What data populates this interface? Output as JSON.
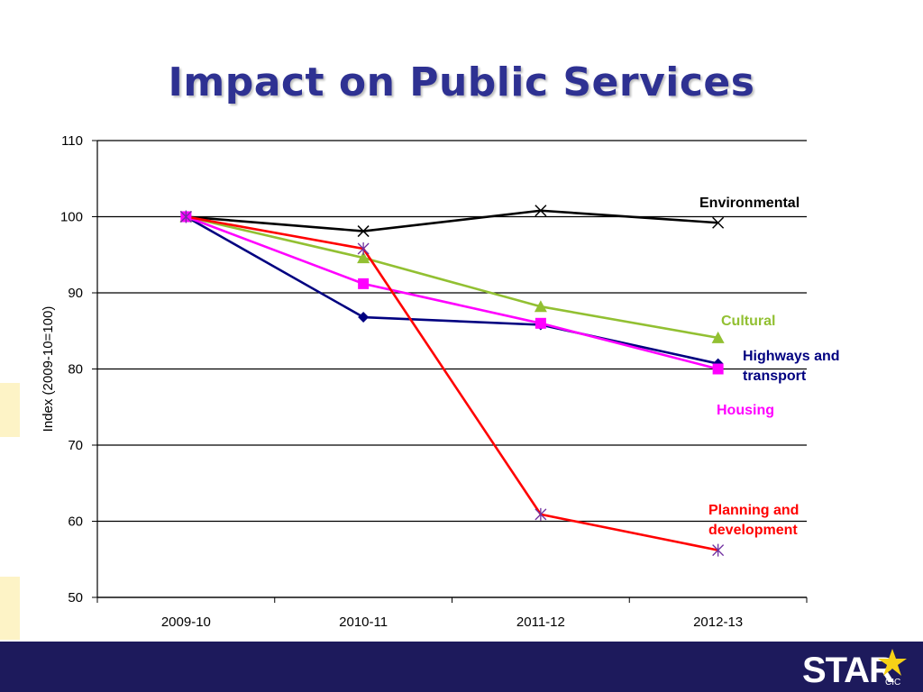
{
  "slide": {
    "title": "Impact on Public Services",
    "logo_text": "STAR",
    "logo_subtext": "CIC"
  },
  "chart_data": {
    "type": "line",
    "title": "",
    "xlabel": "",
    "ylabel": "Index (2009-10=100)",
    "ylim": [
      50,
      110
    ],
    "yticks": [
      50,
      60,
      70,
      80,
      90,
      100,
      110
    ],
    "grid": true,
    "categories": [
      "2009-10",
      "2010-11",
      "2011-12",
      "2012-13"
    ],
    "series": [
      {
        "name": "Environmental",
        "label": "Environmental",
        "color": "#000000",
        "marker": "x",
        "values": [
          100,
          98.1,
          100.8,
          99.2
        ]
      },
      {
        "name": "Cultural",
        "label": "Cultural",
        "color": "#92c032",
        "marker": "triangle",
        "values": [
          100,
          94.6,
          88.2,
          84.1
        ]
      },
      {
        "name": "Highways and transport",
        "label": "Highways and\ntransport",
        "color": "#000080",
        "marker": "diamond",
        "values": [
          100,
          86.8,
          85.8,
          80.7
        ]
      },
      {
        "name": "Housing",
        "label": "Housing",
        "color": "#ff00ff",
        "marker": "square",
        "values": [
          100,
          91.2,
          86.0,
          80.0
        ]
      },
      {
        "name": "Planning and development",
        "label": "Planning and\ndevelopment",
        "color": "#ff0000",
        "marker": "asterisk",
        "marker_color": "#7030a0",
        "values": [
          100,
          95.8,
          60.9,
          56.2
        ]
      }
    ]
  }
}
